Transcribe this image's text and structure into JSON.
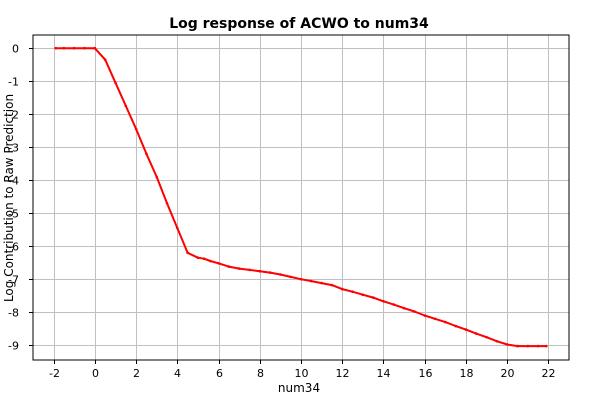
{
  "chart_data": {
    "type": "line",
    "title": "Log response of ACWO to num34",
    "xlabel": "num34",
    "ylabel": "Log Contribution to Raw Prediction",
    "xlim": [
      -3,
      23
    ],
    "ylim": [
      -9.45,
      0.4
    ],
    "x_ticks": [
      -2,
      0,
      2,
      4,
      6,
      8,
      10,
      12,
      14,
      16,
      18,
      20,
      22
    ],
    "y_ticks": [
      0,
      -1,
      -2,
      -3,
      -4,
      -5,
      -6,
      -7,
      -8,
      -9
    ],
    "grid": true,
    "series": [
      {
        "color": "#ff0000",
        "x": [
          -1.9,
          -1.5,
          -1.0,
          -0.5,
          0.0,
          0.5,
          1.0,
          1.5,
          2.0,
          2.5,
          3.0,
          3.5,
          4.0,
          4.5,
          5.0,
          5.3,
          5.6,
          6.0,
          6.5,
          7.0,
          7.5,
          8.0,
          8.5,
          9.0,
          9.5,
          10.0,
          10.5,
          11.0,
          11.5,
          12.0,
          12.5,
          13.0,
          13.5,
          14.0,
          14.5,
          15.0,
          15.5,
          16.0,
          16.5,
          17.0,
          17.5,
          18.0,
          18.5,
          19.0,
          19.5,
          20.0,
          20.5,
          21.0,
          21.5,
          21.9
        ],
        "y": [
          0,
          0,
          0,
          0,
          0,
          -0.35,
          -1.05,
          -1.75,
          -2.45,
          -3.2,
          -3.9,
          -4.7,
          -5.45,
          -6.2,
          -6.35,
          -6.38,
          -6.45,
          -6.52,
          -6.62,
          -6.68,
          -6.72,
          -6.76,
          -6.8,
          -6.86,
          -6.93,
          -7.0,
          -7.06,
          -7.12,
          -7.18,
          -7.3,
          -7.38,
          -7.47,
          -7.56,
          -7.67,
          -7.77,
          -7.88,
          -7.98,
          -8.1,
          -8.2,
          -8.3,
          -8.42,
          -8.53,
          -8.65,
          -8.76,
          -8.88,
          -8.98,
          -9.03,
          -9.03,
          -9.03,
          -9.03
        ]
      }
    ]
  }
}
